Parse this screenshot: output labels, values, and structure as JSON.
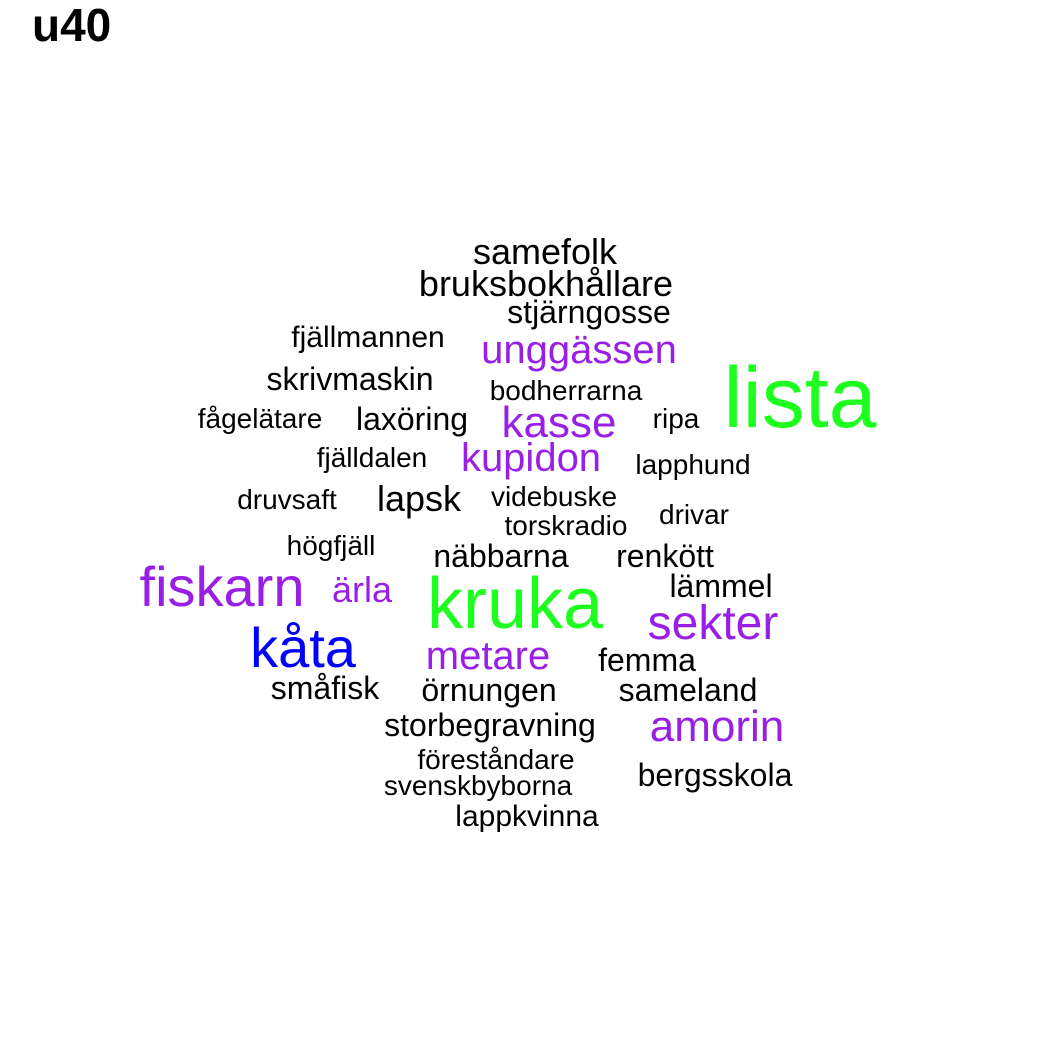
{
  "title": "u40",
  "colors": {
    "default": "#000000",
    "purple": "#9a1fe6",
    "green": "#1fff1f",
    "blue": "#0000ff"
  },
  "words": [
    {
      "text": "samefolk",
      "color": "default"
    },
    {
      "text": "bruksbokhållare",
      "color": "default"
    },
    {
      "text": "stjärngosse",
      "color": "default"
    },
    {
      "text": "fjällmannen",
      "color": "default"
    },
    {
      "text": "unggässen",
      "color": "purple"
    },
    {
      "text": "lista",
      "color": "green"
    },
    {
      "text": "skrivmaskin",
      "color": "default"
    },
    {
      "text": "bodherrarna",
      "color": "default"
    },
    {
      "text": "fågelätare",
      "color": "default"
    },
    {
      "text": "laxöring",
      "color": "default"
    },
    {
      "text": "kasse",
      "color": "purple"
    },
    {
      "text": "ripa",
      "color": "default"
    },
    {
      "text": "fjälldalen",
      "color": "default"
    },
    {
      "text": "kupidon",
      "color": "purple"
    },
    {
      "text": "lapphund",
      "color": "default"
    },
    {
      "text": "druvsaft",
      "color": "default"
    },
    {
      "text": "lapsk",
      "color": "default"
    },
    {
      "text": "videbuske",
      "color": "default"
    },
    {
      "text": "torskradio",
      "color": "default"
    },
    {
      "text": "drivar",
      "color": "default"
    },
    {
      "text": "högfjäll",
      "color": "default"
    },
    {
      "text": "näbbarna",
      "color": "default"
    },
    {
      "text": "renkött",
      "color": "default"
    },
    {
      "text": "fiskarn",
      "color": "purple"
    },
    {
      "text": "ärla",
      "color": "purple"
    },
    {
      "text": "kruka",
      "color": "green"
    },
    {
      "text": "lämmel",
      "color": "default"
    },
    {
      "text": "sekter",
      "color": "purple"
    },
    {
      "text": "kåta",
      "color": "blue"
    },
    {
      "text": "metare",
      "color": "purple"
    },
    {
      "text": "femma",
      "color": "default"
    },
    {
      "text": "småfisk",
      "color": "default"
    },
    {
      "text": "örnungen",
      "color": "default"
    },
    {
      "text": "sameland",
      "color": "default"
    },
    {
      "text": "storbegravning",
      "color": "default"
    },
    {
      "text": "amorin",
      "color": "purple"
    },
    {
      "text": "föreståndare",
      "color": "default"
    },
    {
      "text": "svenskbyborna",
      "color": "default"
    },
    {
      "text": "bergsskola",
      "color": "default"
    },
    {
      "text": "lappkvinna",
      "color": "default"
    }
  ]
}
